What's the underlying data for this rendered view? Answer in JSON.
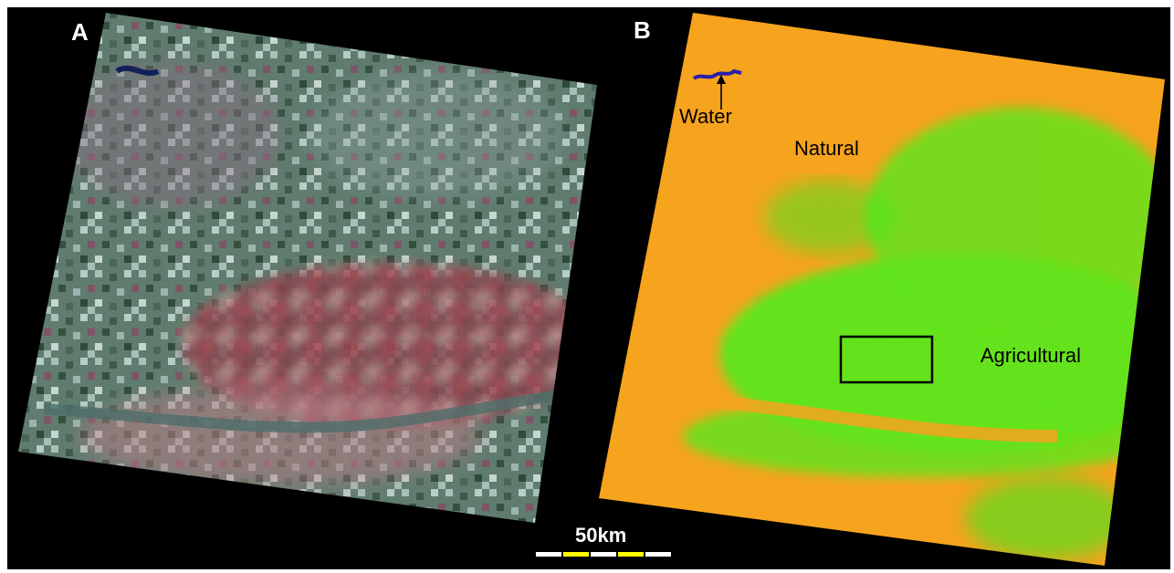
{
  "panels": {
    "a": {
      "letter": "A"
    },
    "b": {
      "letter": "B",
      "labels": {
        "water": "Water",
        "natural": "Natural",
        "agricultural": "Agricultural"
      }
    }
  },
  "scale_bar": {
    "label": "50km"
  },
  "colors": {
    "background": "#000000",
    "natural": "#f6a31e",
    "agricultural": "#3ee81c",
    "water": "#2a1fa8",
    "satellite_base": "#5e7e70",
    "satellite_crop": "#c62c3a",
    "scale_white": "#ffffff",
    "scale_yellow": "#ffff00"
  }
}
